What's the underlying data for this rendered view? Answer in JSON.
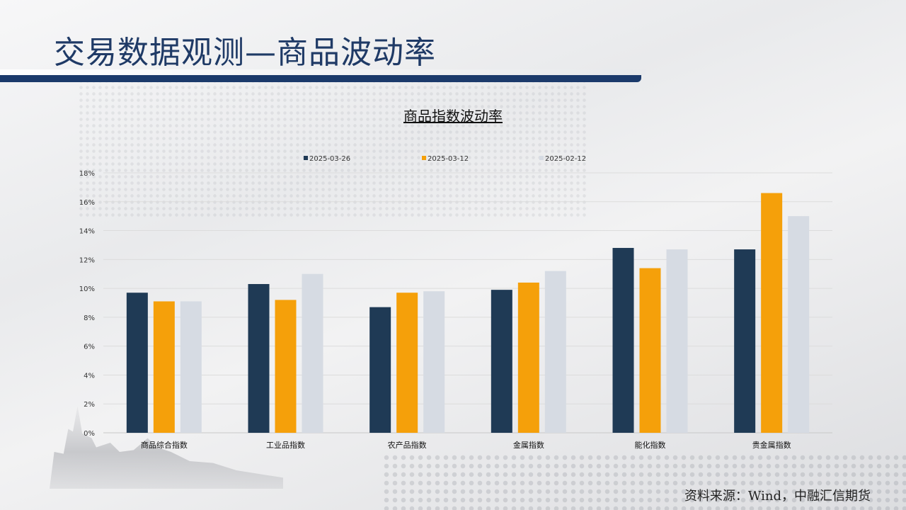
{
  "page": {
    "title": "交易数据观测—商品波动率",
    "source": "资料来源：Wind，中融汇信期货"
  },
  "chart_data": {
    "type": "bar",
    "title": "商品指数波动率",
    "categories": [
      "商品综合指数",
      "工业品指数",
      "农产品指数",
      "金属指数",
      "能化指数",
      "贵金属指数"
    ],
    "series": [
      {
        "name": "2025-03-26",
        "color": "#1f3a55",
        "values": [
          9.7,
          10.3,
          8.7,
          9.9,
          12.8,
          12.7
        ]
      },
      {
        "name": "2025-03-12",
        "color": "#f5a00a",
        "values": [
          9.1,
          9.2,
          9.7,
          10.4,
          11.4,
          16.6
        ]
      },
      {
        "name": "2025-02-12",
        "color": "#d6dbe3",
        "values": [
          9.1,
          11.0,
          9.8,
          11.2,
          12.7,
          15.0
        ]
      }
    ],
    "yticks": [
      "0%",
      "2%",
      "4%",
      "6%",
      "8%",
      "10%",
      "12%",
      "14%",
      "16%",
      "18%"
    ],
    "ylim": [
      0,
      18
    ],
    "grid": true,
    "legend": "top"
  }
}
